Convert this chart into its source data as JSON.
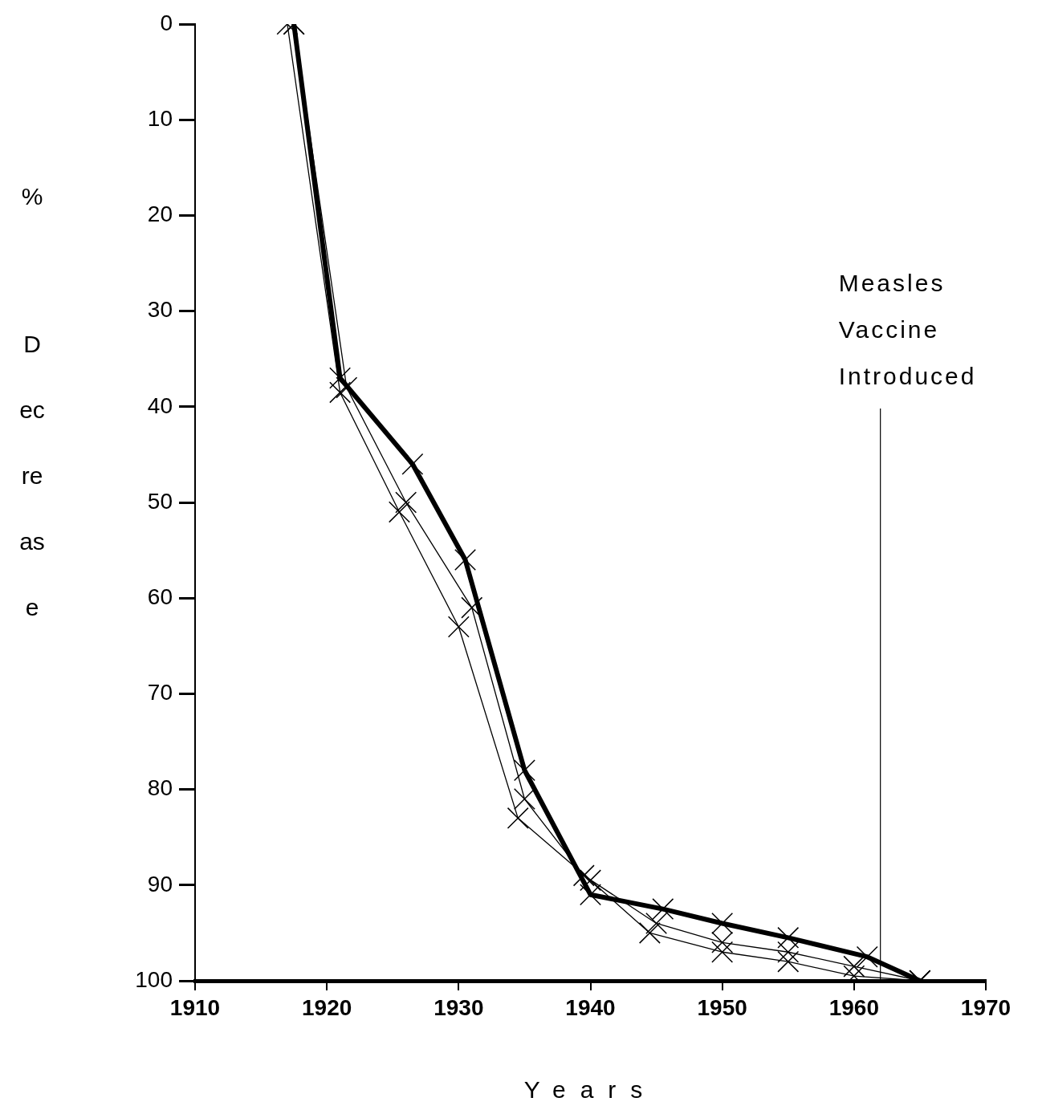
{
  "chart_data": {
    "type": "line",
    "xlabel": "Years",
    "ylabel": "% Decrease",
    "xlim": [
      1910,
      1970
    ],
    "xticks": [
      1910,
      1920,
      1930,
      1940,
      1950,
      1960,
      1970
    ],
    "ylim": [
      100,
      0
    ],
    "yticks": [
      0,
      10,
      20,
      30,
      40,
      50,
      60,
      70,
      80,
      90,
      100
    ],
    "grid": false,
    "legend": false,
    "marker": "cross",
    "line_style": "solid",
    "series": [
      {
        "color": "#000000",
        "x": [
          1917.5,
          1921,
          1926.5,
          1930.5,
          1935,
          1940,
          1945.5,
          1950,
          1955,
          1961,
          1965
        ],
        "values": [
          0,
          37,
          46,
          56,
          78,
          91,
          92.5,
          94,
          95.5,
          97.5,
          100
        ]
      },
      {
        "color": "#000000",
        "x": [
          1917.5,
          1921.5,
          1926,
          1931,
          1935,
          1939.5,
          1945,
          1950,
          1955,
          1960,
          1965
        ],
        "values": [
          0,
          38,
          50,
          61,
          81,
          89,
          94,
          96,
          97,
          98.5,
          100
        ]
      },
      {
        "color": "#000000",
        "x": [
          1917,
          1921,
          1925.5,
          1930,
          1934.5,
          1940,
          1944.5,
          1950,
          1955,
          1960,
          1965
        ],
        "values": [
          0,
          38.5,
          51,
          63,
          83,
          89.5,
          95,
          97,
          98,
          99.5,
          100
        ]
      }
    ],
    "ref_lines": [
      {
        "axis": "x",
        "value": 1962,
        "label": "Measles Vaccine Introduced"
      }
    ]
  }
}
